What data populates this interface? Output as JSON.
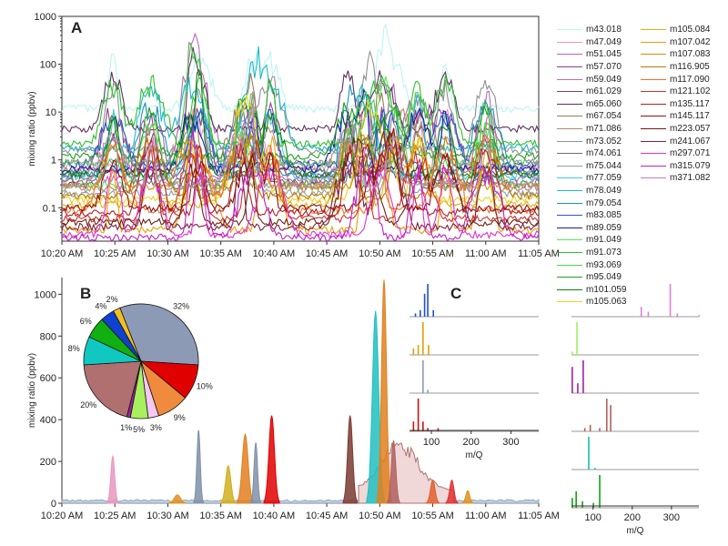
{
  "chart_data": [
    {
      "panel": "A",
      "type": "line",
      "ylabel": "mixing ratio (ppbv)",
      "xlabel": "",
      "yscale": "log",
      "ylim": [
        0.02,
        1000
      ],
      "ytick_labels": [
        "0.1",
        "1",
        "10",
        "100",
        "1000"
      ],
      "xtick_labels": [
        "10:20 AM",
        "10:25 AM",
        "10:30 AM",
        "10:35 AM",
        "10:40 AM",
        "10:45 AM",
        "10:50 AM",
        "10:55 AM",
        "11:00 AM",
        "11:05 AM"
      ],
      "xlim": [
        "10:20 AM",
        "11:05 AM"
      ],
      "series": [
        {
          "name": "m43.018",
          "color": "#bff3f3",
          "baseline": 12
        },
        {
          "name": "m47.049",
          "color": "#e896c0",
          "baseline": 0.7
        },
        {
          "name": "m51.045",
          "color": "#c060c0",
          "baseline": 0.4
        },
        {
          "name": "m57.070",
          "color": "#904090",
          "baseline": 0.5
        },
        {
          "name": "m59.049",
          "color": "#b070b0",
          "baseline": 0.9
        },
        {
          "name": "m61.029",
          "color": "#804060",
          "baseline": 0.3
        },
        {
          "name": "m65.060",
          "color": "#603060",
          "baseline": 4.5
        },
        {
          "name": "m67.054",
          "color": "#a07858",
          "baseline": 0.6
        },
        {
          "name": "m71.086",
          "color": "#b08870",
          "baseline": 0.25
        },
        {
          "name": "m73.052",
          "color": "#909090",
          "baseline": 1.6
        },
        {
          "name": "m74.061",
          "color": "#707070",
          "baseline": 0.35
        },
        {
          "name": "m75.044",
          "color": "#8fa0a0",
          "baseline": 0.2
        },
        {
          "name": "m77.059",
          "color": "#40d0d0",
          "baseline": 0.45
        },
        {
          "name": "m78.049",
          "color": "#20b8c8",
          "baseline": 1.8
        },
        {
          "name": "m79.054",
          "color": "#2090b0",
          "baseline": 0.55
        },
        {
          "name": "m83.085",
          "color": "#3050d0",
          "baseline": 0.8
        },
        {
          "name": "m89.059",
          "color": "#1020a0",
          "baseline": 0.65
        },
        {
          "name": "m91.049",
          "color": "#60e060",
          "baseline": 0.3
        },
        {
          "name": "m91.073",
          "color": "#30c030",
          "baseline": 2.2
        },
        {
          "name": "m93.069",
          "color": "#50d050",
          "baseline": 0.9
        },
        {
          "name": "m95.049",
          "color": "#20a020",
          "baseline": 1.2
        },
        {
          "name": "m101.059",
          "color": "#108010",
          "baseline": 0.5
        },
        {
          "name": "m105.063",
          "color": "#f0d020",
          "baseline": 0.15
        },
        {
          "name": "m105.084",
          "color": "#e0b010",
          "baseline": 0.12
        },
        {
          "name": "m107.042",
          "color": "#e8a000",
          "baseline": 0.035
        },
        {
          "name": "m107.083",
          "color": "#d09000",
          "baseline": 0.28
        },
        {
          "name": "m116.905",
          "color": "#c07800",
          "baseline": 0.18
        },
        {
          "name": "m117.090",
          "color": "#f07030",
          "baseline": 0.09
        },
        {
          "name": "m121.102",
          "color": "#d03030",
          "baseline": 0.06
        },
        {
          "name": "m135.117",
          "color": "#b02020",
          "baseline": 0.08
        },
        {
          "name": "m145.117",
          "color": "#901010",
          "baseline": 0.1
        },
        {
          "name": "m223.057",
          "color": "#702010",
          "baseline": 0.05
        },
        {
          "name": "m241.067",
          "color": "#802040",
          "baseline": 0.04
        },
        {
          "name": "m297.071",
          "color": "#e030d0",
          "baseline": 0.028
        },
        {
          "name": "m315.079",
          "color": "#c020c0",
          "baseline": 0.024
        },
        {
          "name": "m371.082",
          "color": "#c080c0",
          "baseline": 0.3
        }
      ]
    },
    {
      "panel": "B",
      "type": "area",
      "ylabel": "mixing ratio (ppbv)",
      "ylim": [
        0,
        1080
      ],
      "yticks": [
        0,
        200,
        400,
        600,
        800,
        1000
      ],
      "xtick_labels": [
        "10:20 AM",
        "10:25 AM",
        "10:30 AM",
        "10:35 AM",
        "10:40 AM",
        "10:45 AM",
        "10:50 AM",
        "10:55 AM",
        "11:00 AM",
        "11:05 AM"
      ],
      "peaks": [
        {
          "x_min": 4.8,
          "value": 225,
          "color": "#e896c0"
        },
        {
          "x_min": 10.9,
          "value": 40,
          "color": "#e09020"
        },
        {
          "x_min": 12.9,
          "value": 350,
          "color": "#8090a8"
        },
        {
          "x_min": 15.7,
          "value": 180,
          "color": "#d0b020"
        },
        {
          "x_min": 17.3,
          "value": 330,
          "color": "#e08020"
        },
        {
          "x_min": 18.3,
          "value": 290,
          "color": "#8090a8"
        },
        {
          "x_min": 19.8,
          "value": 420,
          "color": "#e00000"
        },
        {
          "x_min": 27.2,
          "value": 420,
          "color": "#7a3a30"
        },
        {
          "x_min": 29.6,
          "value": 920,
          "color": "#20c0c0"
        },
        {
          "x_min": 30.4,
          "value": 1070,
          "color": "#e08020"
        },
        {
          "x_min": 31.3,
          "value": 300,
          "color": "#b06060"
        },
        {
          "x_min": 35,
          "value": 110,
          "color": "#e06030"
        },
        {
          "x_min": 36.8,
          "value": 110,
          "color": "#e03030"
        },
        {
          "x_min": 38.3,
          "value": 60,
          "color": "#e09020"
        }
      ]
    },
    {
      "panel": "B-inset",
      "type": "pie",
      "slices": [
        {
          "label": "32%",
          "value": 32,
          "color": "#8d9ab5"
        },
        {
          "label": "10%",
          "value": 10,
          "color": "#e00000"
        },
        {
          "label": "9%",
          "value": 9,
          "color": "#f08a3c"
        },
        {
          "label": "3%",
          "value": 3,
          "color": "#f4c8f0"
        },
        {
          "label": "5%",
          "value": 5,
          "color": "#a8f060"
        },
        {
          "label": "1%",
          "value": 1,
          "color": "#a020a0"
        },
        {
          "label": "20%",
          "value": 20,
          "color": "#b07070"
        },
        {
          "label": "8%",
          "value": 8,
          "color": "#10c8c0"
        },
        {
          "label": "6%",
          "value": 6,
          "color": "#10b010"
        },
        {
          "label": "4%",
          "value": 4,
          "color": "#1040d0"
        },
        {
          "label": "2%",
          "value": 2,
          "color": "#f0c020"
        }
      ]
    },
    {
      "panel": "C",
      "type": "bar",
      "xlabel": "m/Q",
      "xlim": [
        45,
        370
      ],
      "xticks": [
        100,
        200,
        300
      ],
      "spectra_left": [
        {
          "color": "#2050d0",
          "peaks": [
            [
              60,
              0.1
            ],
            [
              72,
              0.2
            ],
            [
              83,
              0.7
            ],
            [
              91,
              1.0
            ],
            [
              105,
              0.2
            ]
          ]
        },
        {
          "color": "#e0a000",
          "peaks": [
            [
              55,
              0.2
            ],
            [
              67,
              0.3
            ],
            [
              79,
              1.0
            ],
            [
              93,
              0.3
            ]
          ]
        },
        {
          "color": "#8d9ab5",
          "peaks": [
            [
              79,
              1.0
            ],
            [
              91,
              0.1
            ]
          ]
        },
        {
          "color": "#d01010",
          "peaks": [
            [
              55,
              0.3
            ],
            [
              67,
              1.0
            ],
            [
              79,
              0.3
            ],
            [
              91,
              0.1
            ],
            [
              117,
              0.1
            ]
          ]
        }
      ],
      "spectra_right": [
        {
          "color": "#e080d0",
          "peaks": [
            [
              223,
              0.3
            ],
            [
              241,
              0.15
            ],
            [
              297,
              1.0
            ],
            [
              315,
              0.1
            ],
            [
              371,
              0.05
            ]
          ]
        },
        {
          "color": "#a0f060",
          "peaks": [
            [
              47,
              0.1
            ],
            [
              59,
              1.0
            ]
          ]
        },
        {
          "color": "#a020a0",
          "peaks": [
            [
              47,
              0.8
            ],
            [
              61,
              0.3
            ],
            [
              75,
              1.0
            ]
          ]
        },
        {
          "color": "#b06060",
          "peaks": [
            [
              79,
              0.1
            ],
            [
              93,
              0.2
            ],
            [
              117,
              0.1
            ],
            [
              135,
              1.0
            ],
            [
              145,
              0.8
            ]
          ]
        },
        {
          "color": "#10c0b0",
          "peaks": [
            [
              89,
              1.0
            ],
            [
              105,
              0.05
            ]
          ]
        },
        {
          "color": "#10a010",
          "peaks": [
            [
              47,
              0.3
            ],
            [
              57,
              0.5
            ],
            [
              73,
              0.2
            ],
            [
              101,
              0.15
            ],
            [
              117,
              1.0
            ]
          ]
        }
      ]
    }
  ],
  "panel_labels": {
    "a": "A",
    "b": "B",
    "c": "C"
  }
}
